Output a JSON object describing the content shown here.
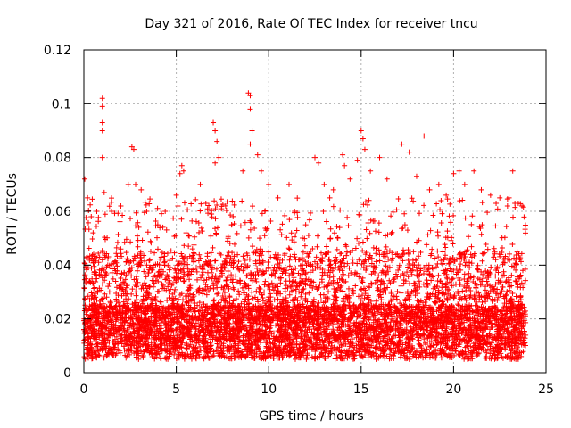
{
  "chart_data": {
    "type": "scatter",
    "title": "Day 321 of 2016, Rate Of TEC Index for receiver tncu",
    "xlabel": "GPS time / hours",
    "ylabel": "ROTI / TECUs",
    "xlim": [
      0,
      25
    ],
    "ylim": [
      0,
      0.12
    ],
    "xticks": [
      0,
      5,
      10,
      15,
      20,
      25
    ],
    "xtick_labels": [
      "0",
      "5",
      "10",
      "15",
      "20",
      "25"
    ],
    "yticks": [
      0,
      0.02,
      0.04,
      0.06,
      0.08,
      0.1,
      0.12
    ],
    "ytick_labels": [
      "0",
      "0.02",
      "0.04",
      "0.06",
      "0.08",
      "0.1",
      "0.12"
    ],
    "grid": true,
    "marker": "plus",
    "color": "#ff0000",
    "x_range_of_data": [
      0,
      23.9
    ],
    "points": [
      [
        0.05,
        0.072
      ],
      [
        0.2,
        0.065
      ],
      [
        0.4,
        0.058
      ],
      [
        0.5,
        0.052
      ],
      [
        0.7,
        0.06
      ],
      [
        1.0,
        0.102
      ],
      [
        1.0,
        0.099
      ],
      [
        1.0,
        0.093
      ],
      [
        1.0,
        0.09
      ],
      [
        1.0,
        0.08
      ],
      [
        1.1,
        0.067
      ],
      [
        1.5,
        0.06
      ],
      [
        2.0,
        0.062
      ],
      [
        2.4,
        0.07
      ],
      [
        2.6,
        0.084
      ],
      [
        2.7,
        0.083
      ],
      [
        2.8,
        0.07
      ],
      [
        3.1,
        0.068
      ],
      [
        3.4,
        0.06
      ],
      [
        4.0,
        0.055
      ],
      [
        4.4,
        0.06
      ],
      [
        5.0,
        0.066
      ],
      [
        5.2,
        0.074
      ],
      [
        5.3,
        0.077
      ],
      [
        5.4,
        0.075
      ],
      [
        6.3,
        0.07
      ],
      [
        6.6,
        0.063
      ],
      [
        7.0,
        0.093
      ],
      [
        7.1,
        0.09
      ],
      [
        7.2,
        0.086
      ],
      [
        7.3,
        0.08
      ],
      [
        7.1,
        0.078
      ],
      [
        8.0,
        0.055
      ],
      [
        8.6,
        0.075
      ],
      [
        8.9,
        0.104
      ],
      [
        9.0,
        0.103
      ],
      [
        9.0,
        0.098
      ],
      [
        9.1,
        0.09
      ],
      [
        9.0,
        0.085
      ],
      [
        9.4,
        0.081
      ],
      [
        9.6,
        0.075
      ],
      [
        10.0,
        0.07
      ],
      [
        10.5,
        0.065
      ],
      [
        11.1,
        0.07
      ],
      [
        11.4,
        0.06
      ],
      [
        12.0,
        0.055
      ],
      [
        12.5,
        0.08
      ],
      [
        12.7,
        0.078
      ],
      [
        13.0,
        0.07
      ],
      [
        13.3,
        0.065
      ],
      [
        13.5,
        0.068
      ],
      [
        14.0,
        0.081
      ],
      [
        14.1,
        0.077
      ],
      [
        14.4,
        0.072
      ],
      [
        14.8,
        0.079
      ],
      [
        15.0,
        0.09
      ],
      [
        15.1,
        0.087
      ],
      [
        15.2,
        0.083
      ],
      [
        15.5,
        0.075
      ],
      [
        16.0,
        0.08
      ],
      [
        16.4,
        0.072
      ],
      [
        17.2,
        0.085
      ],
      [
        17.6,
        0.082
      ],
      [
        18.0,
        0.073
      ],
      [
        18.4,
        0.088
      ],
      [
        18.7,
        0.068
      ],
      [
        19.2,
        0.07
      ],
      [
        19.6,
        0.066
      ],
      [
        20.0,
        0.074
      ],
      [
        20.3,
        0.075
      ],
      [
        20.6,
        0.07
      ],
      [
        21.1,
        0.075
      ],
      [
        21.5,
        0.068
      ],
      [
        22.0,
        0.066
      ],
      [
        22.3,
        0.063
      ],
      [
        22.5,
        0.065
      ],
      [
        23.0,
        0.065
      ],
      [
        23.2,
        0.075
      ],
      [
        23.5,
        0.063
      ],
      [
        23.7,
        0.062
      ]
    ],
    "density_profile": {
      "comment_free": true,
      "band_low": [
        0.005,
        0.012
      ],
      "band_dense_top": 0.025,
      "band_mid_top": 0.045
    }
  }
}
